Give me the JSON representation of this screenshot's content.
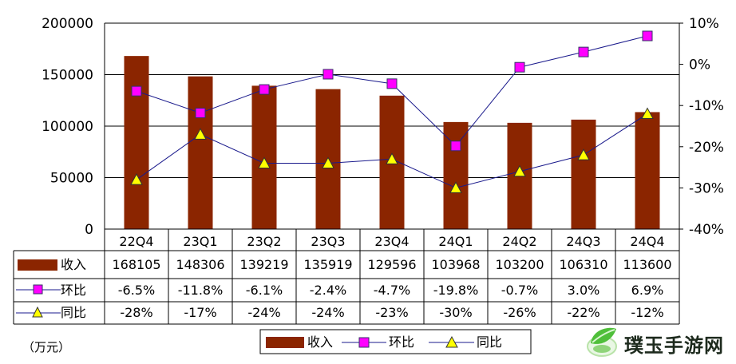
{
  "unit_label": "（万元）",
  "watermark": {
    "text": "璞玉手游网",
    "icon": "leaf-logo-icon"
  },
  "colors": {
    "bar": "#8B2500",
    "hb_line": "#1a1a8c",
    "hb_marker": "#ff00ff",
    "tb_line": "#1a1a8c",
    "tb_marker": "#ffff00",
    "grid": "#000000"
  },
  "chart_data": {
    "type": "bar",
    "categories": [
      "22Q4",
      "23Q1",
      "23Q2",
      "23Q3",
      "23Q4",
      "24Q1",
      "24Q2",
      "24Q3",
      "24Q4"
    ],
    "left_axis": {
      "ylim": [
        0,
        200000
      ],
      "ticks": [
        "0",
        "50000",
        "100000",
        "150000",
        "200000"
      ]
    },
    "right_axis": {
      "ylim": [
        -40,
        10
      ],
      "ticks": [
        "-40%",
        "-30%",
        "-20%",
        "-10%",
        "0%",
        "10%"
      ]
    },
    "grid": true,
    "series": [
      {
        "name": "收入",
        "type": "bar",
        "axis": "left",
        "values": [
          168105,
          148306,
          139219,
          135919,
          129596,
          103968,
          103200,
          106310,
          113600
        ],
        "labels": [
          "168105",
          "148306",
          "139219",
          "135919",
          "129596",
          "103968",
          "103200",
          "106310",
          "113600"
        ]
      },
      {
        "name": "环比",
        "type": "line",
        "axis": "right",
        "marker": "square",
        "values": [
          -6.5,
          -11.8,
          -6.1,
          -2.4,
          -4.7,
          -19.8,
          -0.7,
          3.0,
          6.9
        ],
        "labels": [
          "-6.5%",
          "-11.8%",
          "-6.1%",
          "-2.4%",
          "-4.7%",
          "-19.8%",
          "-0.7%",
          "3.0%",
          "6.9%"
        ]
      },
      {
        "name": "同比",
        "type": "line",
        "axis": "right",
        "marker": "triangle",
        "values": [
          -28,
          -17,
          -24,
          -24,
          -23,
          -30,
          -26,
          -22,
          -12
        ],
        "labels": [
          "-28%",
          "-17%",
          "-24%",
          "-24%",
          "-23%",
          "-30%",
          "-26%",
          "-22%",
          "-12%"
        ]
      }
    ],
    "legend": {
      "placement": "bottom",
      "entries": [
        "收入",
        "环比",
        "同比"
      ]
    }
  }
}
